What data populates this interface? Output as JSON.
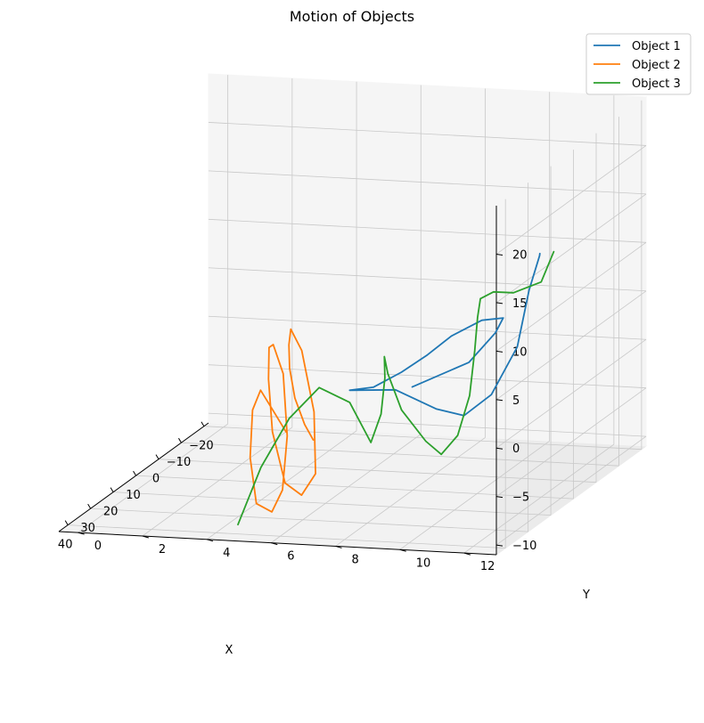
{
  "chart_data": {
    "type": "line",
    "projection": "3d",
    "title": "Motion of Objects",
    "xlabel": "X",
    "ylabel": "Y",
    "zlabel": "",
    "xlim": [
      -22,
      44
    ],
    "ylim": [
      -0.6,
      13
    ],
    "zlim": [
      -11,
      25
    ],
    "xticks": [
      "−20",
      "−10",
      "0",
      "10",
      "20",
      "30",
      "40"
    ],
    "yticks": [
      "0",
      "2",
      "4",
      "6",
      "8",
      "10",
      "12"
    ],
    "zticks": [
      "−10",
      "−5",
      "0",
      "5",
      "10",
      "15",
      "20"
    ],
    "grid": true,
    "legend_position": "top-right",
    "series": [
      {
        "name": "Object 1",
        "color": "#1f77b4",
        "points": [
          [
            -4,
            7.0,
            -2.9
          ],
          [
            -12,
            8.2,
            -1.5
          ],
          [
            -18,
            8.6,
            0.6
          ],
          [
            -20,
            8.7,
            1.8
          ],
          [
            -12,
            8.6,
            2.9
          ],
          [
            0,
            8.5,
            3.3
          ],
          [
            12,
            8.6,
            3.4
          ],
          [
            22,
            8.5,
            3.3
          ],
          [
            33,
            8.4,
            3.6
          ],
          [
            42,
            8.3,
            4.8
          ],
          [
            36,
            9.3,
            4.0
          ],
          [
            28,
            10.0,
            0.8
          ],
          [
            20,
            10.3,
            -1.2
          ],
          [
            15,
            10.8,
            0.2
          ],
          [
            13.5,
            11.5,
            5.0
          ],
          [
            14,
            11.9,
            11.0
          ],
          [
            15,
            12.3,
            14.8
          ],
          [
            14.9,
            12.3,
            15.0
          ]
        ]
      },
      {
        "name": "Object 2",
        "color": "#ff7f0e",
        "points": [
          [
            -10,
            3.5,
            -10.0
          ],
          [
            -2,
            3.8,
            -7.0
          ],
          [
            8,
            4.2,
            -2.5
          ],
          [
            16,
            4.6,
            2.0
          ],
          [
            22,
            5.0,
            5.5
          ],
          [
            24,
            5.2,
            7.5
          ],
          [
            22,
            5.4,
            5.0
          ],
          [
            18,
            5.5,
            -2.0
          ],
          [
            14.5,
            5.3,
            -9.0
          ],
          [
            15,
            4.9,
            -11.2
          ],
          [
            18,
            4.6,
            -9.5
          ],
          [
            25,
            4.7,
            -3.0
          ],
          [
            31,
            5.0,
            3.5
          ],
          [
            35,
            5.3,
            7.5
          ],
          [
            36,
            5.5,
            8.0
          ],
          [
            33,
            5.6,
            4.5
          ],
          [
            27,
            5.3,
            -3.0
          ],
          [
            22,
            4.8,
            -9.5
          ],
          [
            21,
            4.4,
            -12.0
          ],
          [
            25,
            4.2,
            -10.5
          ],
          [
            32,
            4.5,
            -4.5
          ],
          [
            38,
            5.0,
            1.5
          ],
          [
            43,
            5.6,
            4.5
          ],
          [
            45,
            6.1,
            3.0
          ],
          [
            44.5,
            6.5,
            0.6
          ]
        ]
      },
      {
        "name": "Object 3",
        "color": "#2ca02c",
        "points": [
          [
            40.2,
            4.7,
            -10.0
          ],
          [
            40.0,
            5.4,
            -4.0
          ],
          [
            38.8,
            6.2,
            1.0
          ],
          [
            37.0,
            7.0,
            4.0
          ],
          [
            33.5,
            7.7,
            2.0
          ],
          [
            29.8,
            8.1,
            -2.7
          ],
          [
            31.0,
            8.5,
            0.5
          ],
          [
            35.0,
            8.9,
            5.0
          ],
          [
            39.5,
            9.2,
            8.0
          ],
          [
            40.8,
            9.4,
            6.5
          ],
          [
            39.0,
            9.7,
            2.5
          ],
          [
            34.0,
            10.1,
            -1.5
          ],
          [
            30.0,
            10.3,
            -3.5
          ],
          [
            27.0,
            10.6,
            -2.0
          ],
          [
            26.0,
            10.9,
            2.0
          ],
          [
            28.0,
            11.2,
            7.0
          ],
          [
            31.0,
            11.5,
            11.0
          ],
          [
            34.0,
            11.8,
            13.5
          ],
          [
            32.5,
            12.1,
            14.0
          ],
          [
            28.0,
            12.4,
            13.2
          ],
          [
            20.0,
            12.7,
            13.0
          ],
          [
            17.3,
            12.9,
            15.7
          ]
        ]
      }
    ]
  }
}
